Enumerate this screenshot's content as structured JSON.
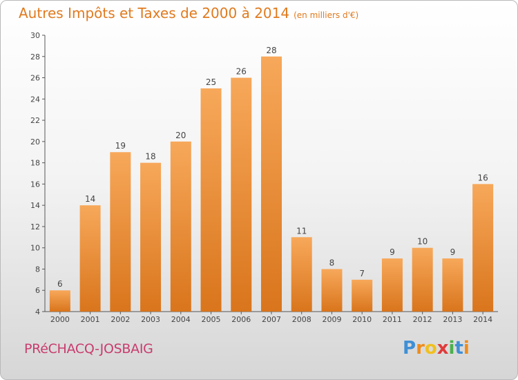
{
  "chart_data": {
    "type": "bar",
    "title": "Autres Impôts et Taxes de 2000 à 2014",
    "unit": "(en milliers d'€)",
    "categories": [
      "2000",
      "2001",
      "2002",
      "2003",
      "2004",
      "2005",
      "2006",
      "2007",
      "2008",
      "2009",
      "2010",
      "2011",
      "2012",
      "2013",
      "2014"
    ],
    "values": [
      6,
      14,
      19,
      18,
      20,
      25,
      26,
      28,
      11,
      8,
      7,
      9,
      10,
      9,
      16
    ],
    "ylim": [
      4,
      30
    ],
    "yticks": [
      4,
      6,
      8,
      10,
      12,
      14,
      16,
      18,
      20,
      22,
      24,
      26,
      28,
      30
    ],
    "grid": false,
    "bar_color_top": "#f7a85a",
    "bar_color_bottom": "#d9751c"
  },
  "place_name": "PRéCHACQ-JOSBAIG",
  "logo": {
    "letters": [
      "P",
      "r",
      "o",
      "x",
      "i",
      "t",
      "i"
    ],
    "colors": [
      "#3f8fd6",
      "#f08c1a",
      "#f0c020",
      "#e03a3a",
      "#4bb04b",
      "#3f8fd6",
      "#f08c1a"
    ]
  }
}
